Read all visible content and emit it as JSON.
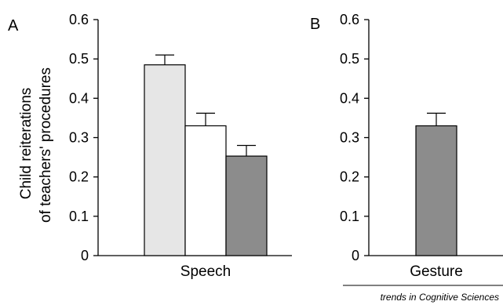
{
  "chart_data": [
    {
      "panel": "A",
      "type": "bar",
      "ylabel": [
        "Child reiterations",
        "of teachers' procedures"
      ],
      "xlabel": "Speech",
      "ylim": [
        0,
        0.6
      ],
      "yticks": [
        "0",
        "0.1",
        "0.2",
        "0.3",
        "0.4",
        "0.5",
        "0.6"
      ],
      "grid": false,
      "series": [
        {
          "value": 0.485,
          "error": 0.025,
          "color": "#e6e6e6"
        },
        {
          "value": 0.33,
          "error": 0.032,
          "color": "#ffffff"
        },
        {
          "value": 0.253,
          "error": 0.027,
          "color": "#8c8c8c"
        }
      ]
    },
    {
      "panel": "B",
      "type": "bar",
      "xlabel": "Gesture",
      "ylim": [
        0,
        0.6
      ],
      "yticks": [
        "0",
        "0.1",
        "0.2",
        "0.3",
        "0.4",
        "0.5",
        "0.6"
      ],
      "grid": false,
      "series": [
        {
          "value": 0.33,
          "error": 0.032,
          "color": "#8c8c8c"
        }
      ]
    }
  ],
  "source": "trends in Cognitive Sciences"
}
